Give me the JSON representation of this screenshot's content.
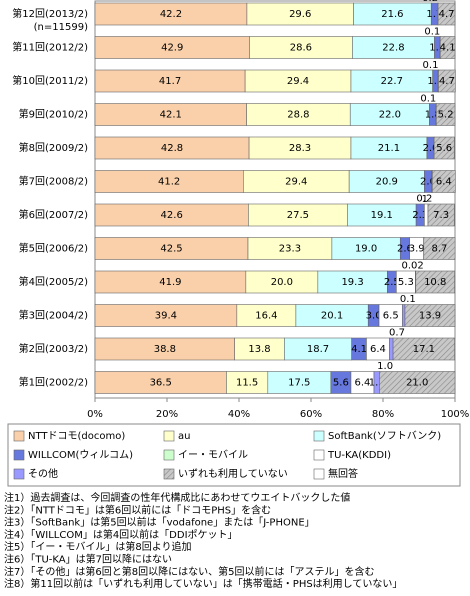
{
  "chart_data": {
    "type": "stacked_bar_horizontal",
    "annotation": "(n=11599)",
    "categories": [
      "第12回(2013/2)",
      "第11回(2012/2)",
      "第10回(2011/2)",
      "第9回(2010/2)",
      "第8回(2009/2)",
      "第7回(2008/2)",
      "第6回(2007/2)",
      "第5回(2006/2)",
      "第4回(2005/2)",
      "第3回(2004/2)",
      "第2回(2003/2)",
      "第1回(2002/2)"
    ],
    "series": [
      {
        "name": "NTTドコモ(docomo)",
        "color": "#F9D0AA",
        "values": [
          42.2,
          42.9,
          41.7,
          42.1,
          42.8,
          41.2,
          42.6,
          42.5,
          41.9,
          39.4,
          38.8,
          36.5
        ],
        "value_labels": [
          "42.2",
          "42.9",
          "41.7",
          "42.1",
          "42.8",
          "41.2",
          "42.6",
          "42.5",
          "41.9",
          "39.4",
          "38.8",
          "36.5"
        ]
      },
      {
        "name": "au",
        "color": "#FFFFCC",
        "values": [
          29.6,
          28.6,
          29.4,
          28.8,
          28.3,
          29.4,
          27.5,
          23.3,
          20.0,
          16.4,
          13.8,
          11.5
        ],
        "value_labels": [
          "29.6",
          "28.6",
          "29.4",
          "28.8",
          "28.3",
          "29.4",
          "27.5",
          "23.3",
          "20.0",
          "16.4",
          "13.8",
          "11.5"
        ]
      },
      {
        "name": "SoftBank(ソフトバンク)",
        "color": "#CCFFFF",
        "values": [
          21.6,
          22.8,
          22.7,
          22.0,
          21.1,
          20.9,
          19.1,
          19.0,
          19.3,
          20.1,
          18.7,
          17.5
        ],
        "value_labels": [
          "21.6",
          "22.8",
          "22.7",
          "22.0",
          "21.1",
          "20.9",
          "19.1",
          "19.0",
          "19.3",
          "20.1",
          "18.7",
          "17.5"
        ]
      },
      {
        "name": "WILLCOM(ウィルコム)",
        "color": "#6677DD",
        "values": [
          1.7,
          1.5,
          1.5,
          1.8,
          2.0,
          2.0,
          2.3,
          2.6,
          2.5,
          3.0,
          4.1,
          5.6
        ],
        "value_labels": [
          "1.7",
          "1.5",
          "1.5",
          "1.8",
          "2.0",
          "2.0",
          "2.3",
          "2.6",
          "2.5",
          "3.0",
          "4.1",
          "5.6"
        ]
      },
      {
        "name": "イー・モバイル",
        "color": "#CCFFCC",
        "values": [
          0.2,
          0.1,
          0.1,
          0.1,
          null,
          null,
          null,
          null,
          null,
          null,
          null,
          null
        ],
        "value_labels": [
          "0.2",
          "0.1",
          "0.1",
          "0.1",
          null,
          null,
          null,
          null,
          null,
          null,
          null,
          null
        ]
      },
      {
        "name": "TU-KA(KDDI)",
        "color": "#FFFFFF",
        "values": [
          null,
          null,
          null,
          null,
          null,
          null,
          1,
          3.9,
          5.3,
          6.5,
          6.4,
          6.4
        ],
        "value_labels": [
          null,
          null,
          null,
          null,
          null,
          null,
          "1",
          "3.9",
          "5.3",
          "6.5",
          "6.4",
          "6.4"
        ]
      },
      {
        "name": "その他",
        "color": "#9999FF",
        "values": [
          null,
          null,
          null,
          null,
          null,
          0.2,
          null,
          0.02,
          0.1,
          0.7,
          1.0,
          1.5
        ],
        "value_labels": [
          null,
          null,
          null,
          null,
          null,
          "0.2",
          null,
          "0.02",
          "0.1",
          "0.7",
          "1.0",
          "1.5"
        ]
      },
      {
        "name": "いずれも利用していない",
        "color": "#C8C8C8",
        "hatch": true,
        "values": [
          4.7,
          4.1,
          4.7,
          5.2,
          5.6,
          6.4,
          7.3,
          8.7,
          10.8,
          13.9,
          17.1,
          21.0
        ],
        "value_labels": [
          "4.7",
          "4.1",
          "4.7",
          "5.2",
          "5.6",
          "6.4",
          "7.3",
          "8.7",
          "10.8",
          "13.9",
          "17.1",
          "21.0"
        ]
      },
      {
        "name": "無回答",
        "color": "#FFFFFF",
        "values": [
          null,
          null,
          null,
          null,
          null,
          null,
          null,
          null,
          null,
          null,
          null,
          null
        ]
      }
    ],
    "xlim": [
      0,
      100
    ],
    "xticks": [
      {
        "value": 0,
        "label": "0%"
      },
      {
        "value": 20,
        "label": "20%"
      },
      {
        "value": 40,
        "label": "40%"
      },
      {
        "value": 60,
        "label": "60%"
      },
      {
        "value": 80,
        "label": "80%"
      },
      {
        "value": 100,
        "label": "100%"
      }
    ],
    "notes": [
      "注1）過去調査は、今回調査の性年代構成比にあわせてウエイトバックした値",
      "注2）「NTTドコモ」は第6回以前には「ドコモPHS」を含む",
      "注3）「SoftBank」は第5回以前は「vodafone」または「J-PHONE」",
      "注4）「WILLCOM」は第4回以前は「DDIポケット」",
      "注5）「イー・モバイル」は第8回より追加",
      "注6）「TU-KA」は第7回以降にはない",
      "注7）「その他」は第6回と第8回以降にはない、第5回以前には「アステル」を含む",
      "注8）第11回以前は「いずれも利用していない」は「携帯電話・PHSは利用していない」"
    ]
  }
}
